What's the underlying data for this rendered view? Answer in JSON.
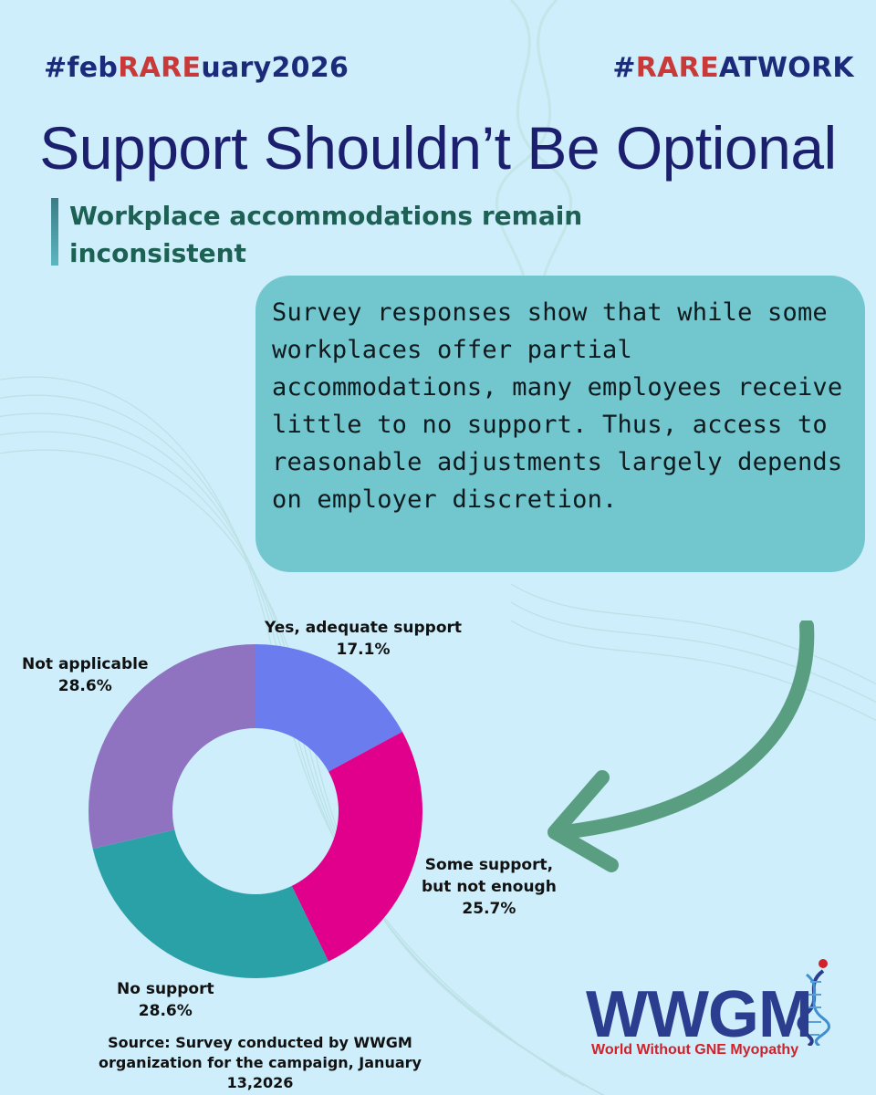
{
  "header": {
    "hashtag_left": {
      "pre": "#feb",
      "accent": "RARE",
      "post": "uary2026"
    },
    "hashtag_right": {
      "pre": "#",
      "accent": "RARE",
      "post": "ATWORK"
    }
  },
  "title": "Support Shouldn’t Be Optional",
  "subtitle": "Workplace accommodations remain inconsistent",
  "callout": "Survey responses show that while some workplaces offer partial accommodations, many employees receive little to no support. Thus, access to reasonable adjustments largely depends on employer discretion.",
  "chart_data": {
    "type": "pie",
    "donut": true,
    "slices": [
      {
        "label": "Yes, adequate support",
        "value": 17.1,
        "display": "17.1%",
        "color": "#6a7cee"
      },
      {
        "label": "Some support, but not enough",
        "value": 25.7,
        "display": "25.7%",
        "color": "#e1008c"
      },
      {
        "label": "No support",
        "value": 28.6,
        "display": "28.6%",
        "color": "#2aa1a6"
      },
      {
        "label": "Not applicable",
        "value": 28.6,
        "display": "28.6%",
        "color": "#9073c0"
      }
    ],
    "start": "12 o'clock",
    "direction": "clockwise"
  },
  "labels": {
    "yes_line1": "Yes, adequate support",
    "some_line1": "Some support,",
    "some_line2": "but not enough",
    "no_line1": "No support",
    "na_line1": "Not applicable"
  },
  "source": "Source: Survey conducted by WWGM organization for the campaign, January 13,2026",
  "logo": {
    "name": "WWGM",
    "tagline": "World Without GNE Myopathy"
  },
  "colors": {
    "background": "#cdeefa",
    "title": "#1c1f6e",
    "accent": "#c83a3a",
    "callout": "#72c6cd",
    "arrow": "#5a9e82"
  }
}
